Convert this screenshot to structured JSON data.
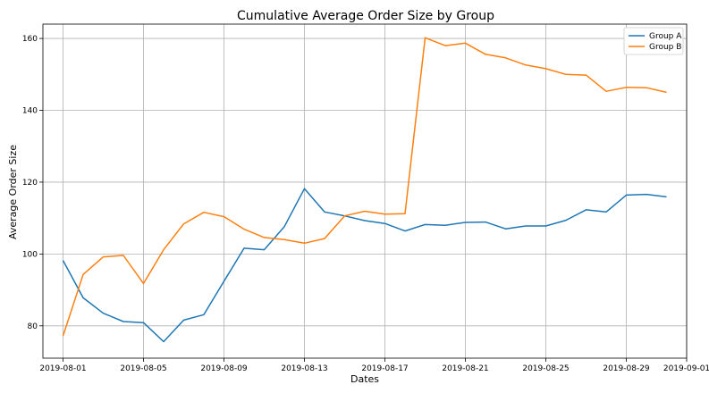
{
  "chart_data": {
    "type": "line",
    "title": "Cumulative Average Order Size by Group",
    "xlabel": "Dates",
    "ylabel": "Average Order Size",
    "x_ticks": [
      "2019-08-01",
      "2019-08-05",
      "2019-08-09",
      "2019-08-13",
      "2019-08-17",
      "2019-08-21",
      "2019-08-25",
      "2019-08-29",
      "2019-09-01"
    ],
    "y_ticks": [
      80,
      100,
      120,
      140,
      160
    ],
    "xlim": [
      "2019-07-31",
      "2019-09-01"
    ],
    "ylim": [
      71,
      164
    ],
    "grid": true,
    "legend": "top-right",
    "x": [
      "2019-08-01",
      "2019-08-02",
      "2019-08-03",
      "2019-08-04",
      "2019-08-05",
      "2019-08-06",
      "2019-08-07",
      "2019-08-08",
      "2019-08-09",
      "2019-08-10",
      "2019-08-11",
      "2019-08-12",
      "2019-08-13",
      "2019-08-14",
      "2019-08-15",
      "2019-08-16",
      "2019-08-17",
      "2019-08-18",
      "2019-08-19",
      "2019-08-20",
      "2019-08-21",
      "2019-08-22",
      "2019-08-23",
      "2019-08-24",
      "2019-08-25",
      "2019-08-26",
      "2019-08-27",
      "2019-08-28",
      "2019-08-29",
      "2019-08-30",
      "2019-08-31"
    ],
    "series": [
      {
        "name": "Group A",
        "color": "#1f77b4",
        "values": [
          98.2,
          87.8,
          83.5,
          81.2,
          80.9,
          75.6,
          81.6,
          83.1,
          92.4,
          101.6,
          101.2,
          107.6,
          118.2,
          111.7,
          110.6,
          109.3,
          108.5,
          106.4,
          108.2,
          108.0,
          108.8,
          108.9,
          107.0,
          107.8,
          107.8,
          109.4,
          112.3,
          111.7,
          116.4,
          116.6,
          115.9
        ]
      },
      {
        "name": "Group B",
        "color": "#ff7f0e",
        "values": [
          77.2,
          94.3,
          99.2,
          99.6,
          91.8,
          101.2,
          108.4,
          111.6,
          110.4,
          106.9,
          104.6,
          104.0,
          103.0,
          104.3,
          110.6,
          111.9,
          111.1,
          111.2,
          160.2,
          158.0,
          158.7,
          155.6,
          154.6,
          152.6,
          151.6,
          150.0,
          149.8,
          145.3,
          146.4,
          146.3,
          145.0
        ]
      }
    ]
  }
}
